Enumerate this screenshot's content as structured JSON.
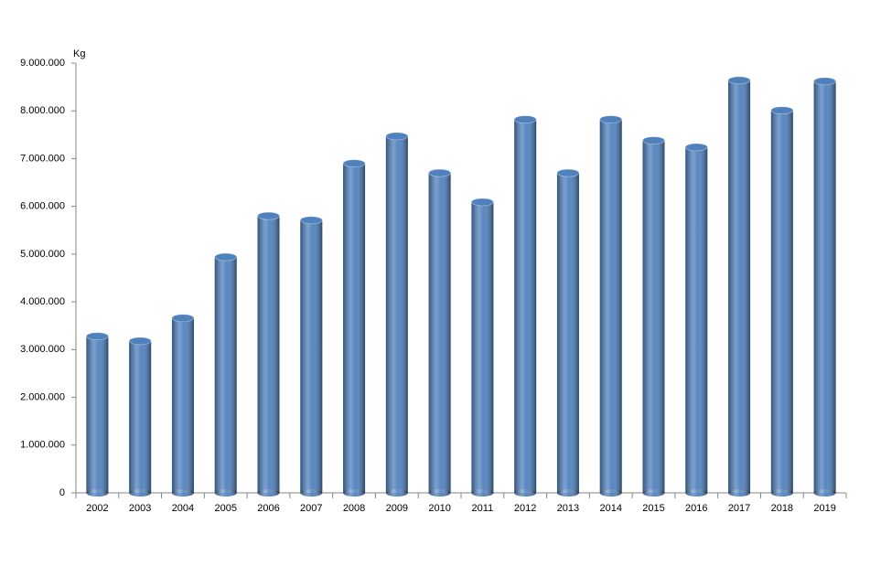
{
  "chart_data": {
    "type": "bar",
    "y_label": "Kg",
    "categories": [
      "2002",
      "2003",
      "2004",
      "2005",
      "2006",
      "2007",
      "2008",
      "2009",
      "2010",
      "2011",
      "2012",
      "2013",
      "2014",
      "2015",
      "2016",
      "2017",
      "2018",
      "2019"
    ],
    "values": [
      3280000,
      3180000,
      3660000,
      4940000,
      5800000,
      5710000,
      6900000,
      7470000,
      6700000,
      6090000,
      7820000,
      6700000,
      7820000,
      7380000,
      7240000,
      8640000,
      8010000,
      8620000
    ],
    "color": "#4f81bd",
    "ylim": [
      0,
      9000000
    ],
    "yticks": [
      0,
      {
        "value": 1000000,
        "label": "1.000.000"
      },
      {
        "value": 2000000,
        "label": "2.000.000"
      },
      {
        "value": 3000000,
        "label": "3.000.000"
      },
      {
        "value": 4000000,
        "label": "4.000.000"
      },
      {
        "value": 5000000,
        "label": "5.000.000"
      },
      {
        "value": 6000000,
        "label": "6.000.000"
      },
      {
        "value": 7000000,
        "label": "7.000.000"
      },
      {
        "value": 8000000,
        "label": "8.000.000"
      },
      {
        "value": 9000000,
        "label": "9.000.000"
      }
    ],
    "grid": false
  }
}
